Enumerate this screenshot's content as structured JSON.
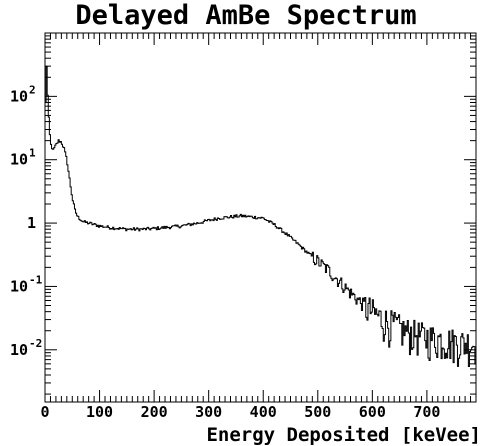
{
  "chart_data": {
    "type": "line",
    "title": "Delayed AmBe Spectrum",
    "xlabel": "Energy Deposited [keVee]",
    "ylabel": "",
    "xlim": [
      0,
      790
    ],
    "ylim": [
      0.0015,
      1000
    ],
    "yscale": "log",
    "x_tick_labels": [
      "0",
      "100",
      "200",
      "300",
      "400",
      "500",
      "600",
      "700"
    ],
    "x_tick_values": [
      0,
      100,
      200,
      300,
      400,
      500,
      600,
      700
    ],
    "y_tick_labels": [
      {
        "base": "10",
        "exp": "2",
        "value": 100
      },
      {
        "base": "10",
        "exp": "1",
        "value": 10
      },
      {
        "base": "1",
        "exp": "",
        "value": 1
      },
      {
        "base": "10",
        "exp": "-1",
        "value": 0.1
      },
      {
        "base": "10",
        "exp": "-2",
        "value": 0.01
      }
    ],
    "series": [
      {
        "x": [
          0,
          3,
          6,
          10,
          15,
          20,
          25,
          30,
          35,
          40,
          45,
          50,
          55,
          60,
          65,
          70,
          80,
          90,
          100,
          120,
          150,
          180,
          200,
          220,
          250,
          280,
          300,
          320,
          340,
          360,
          380,
          400,
          420,
          440,
          460,
          480,
          500,
          520,
          540,
          560,
          580,
          600,
          620,
          640,
          660,
          680,
          700,
          720,
          740,
          760,
          780,
          790
        ],
        "y": [
          40,
          300,
          60,
          18,
          14,
          17,
          20,
          19,
          15,
          10,
          5,
          2.5,
          1.6,
          1.25,
          1.15,
          1.05,
          1.0,
          0.95,
          0.9,
          0.85,
          0.8,
          0.8,
          0.82,
          0.85,
          0.9,
          1.0,
          1.1,
          1.2,
          1.25,
          1.3,
          1.25,
          1.2,
          0.95,
          0.7,
          0.5,
          0.35,
          0.25,
          0.18,
          0.12,
          0.08,
          0.055,
          0.04,
          0.03,
          0.025,
          0.02,
          0.018,
          0.016,
          0.015,
          0.014,
          0.013,
          0.013,
          0.012
        ]
      }
    ]
  }
}
